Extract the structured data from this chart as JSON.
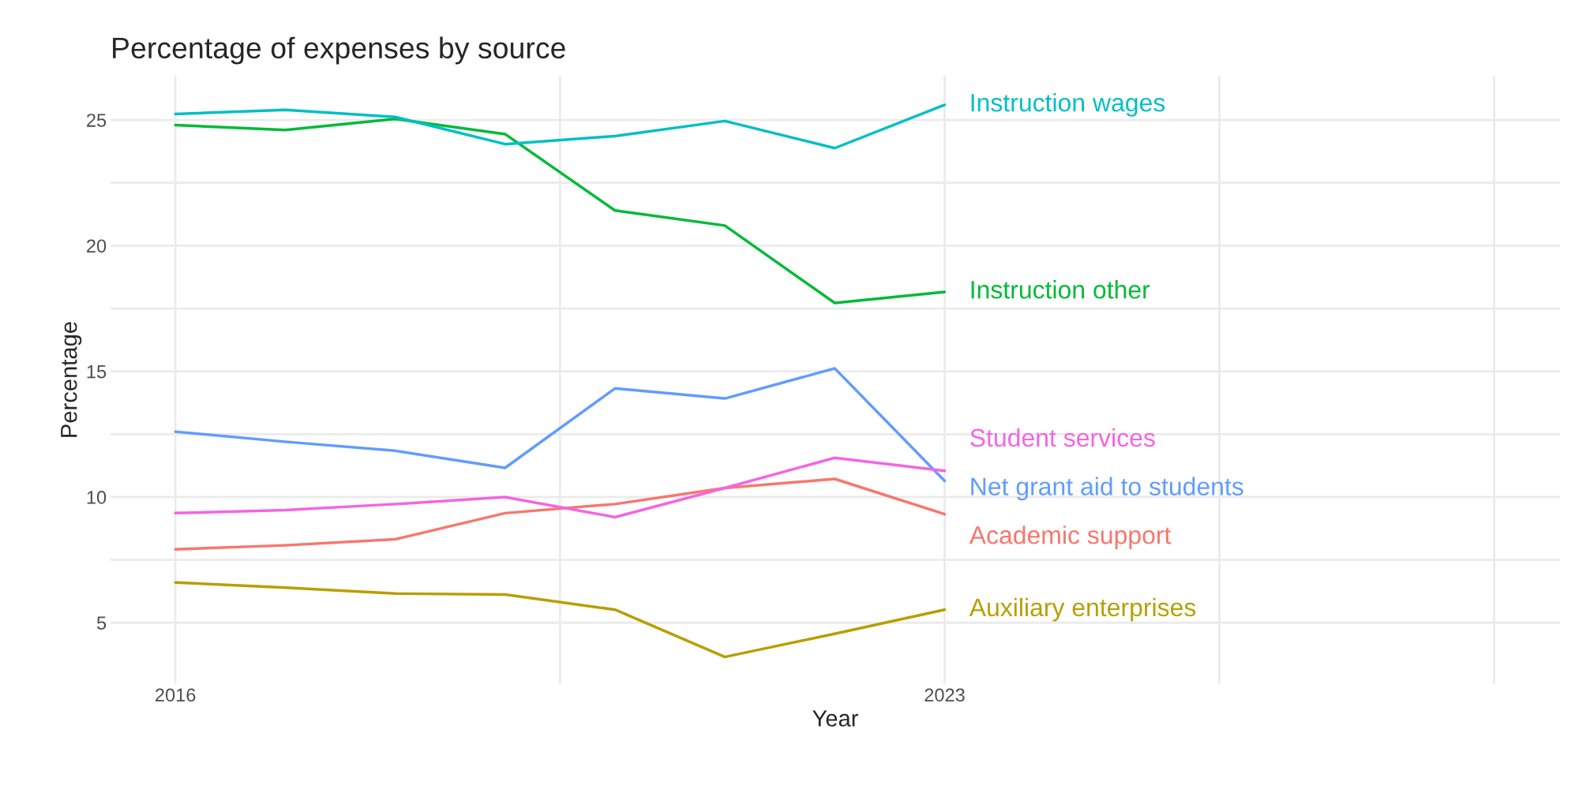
{
  "chart_data": {
    "type": "line",
    "title": "Percentage of expenses by source",
    "xlabel": "Year",
    "ylabel": "Percentage",
    "x": [
      2016,
      2017,
      2018,
      2019,
      2020,
      2021,
      2022,
      2023
    ],
    "xlim": [
      2015.41,
      2028.6
    ],
    "xticks": [
      2016,
      {
        "value": 2019.5,
        "label": null
      },
      2023,
      {
        "value": 2025.5,
        "label": null
      },
      {
        "value": 2028,
        "label": null
      }
    ],
    "ylim": [
      2.56,
      26.76
    ],
    "yticks": [
      5,
      {
        "value": 7.5,
        "label": null
      },
      10,
      {
        "value": 12.5,
        "label": null
      },
      15,
      {
        "value": 17.5,
        "label": null
      },
      20,
      {
        "value": 22.5,
        "label": null
      },
      25
    ],
    "grid": true,
    "legend": false,
    "series": [
      {
        "name": "Academic support",
        "color": "#F8766D",
        "values": [
          7.92,
          8.08,
          8.32,
          9.36,
          9.72,
          10.36,
          10.72,
          9.32
        ]
      },
      {
        "name": "Auxiliary enterprises",
        "color": "#B79F00",
        "values": [
          6.6,
          6.4,
          6.16,
          6.12,
          5.52,
          3.64,
          4.56,
          5.52
        ]
      },
      {
        "name": "Instruction other",
        "color": "#00BA38",
        "values": [
          24.8,
          24.6,
          25.04,
          24.44,
          21.4,
          20.8,
          17.72,
          18.16
        ]
      },
      {
        "name": "Instruction wages",
        "color": "#00BFC4",
        "values": [
          25.24,
          25.4,
          25.12,
          24.04,
          24.36,
          24.96,
          23.88,
          25.6
        ]
      },
      {
        "name": "Net grant aid to students",
        "color": "#619CFF",
        "values": [
          12.6,
          12.2,
          11.84,
          11.16,
          14.32,
          13.92,
          15.12,
          10.64
        ]
      },
      {
        "name": "Student services",
        "color": "#F564E3",
        "values": [
          9.36,
          9.48,
          9.72,
          10.0,
          9.2,
          10.36,
          11.56,
          11.04
        ]
      }
    ]
  }
}
